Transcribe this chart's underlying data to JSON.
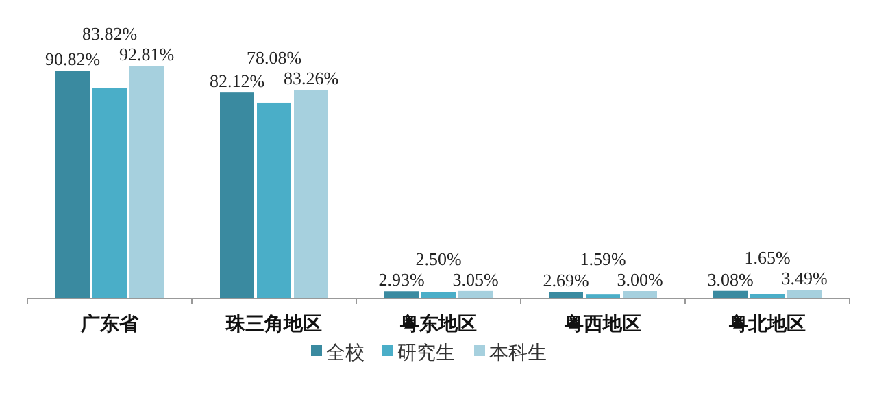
{
  "chart_data": {
    "type": "bar",
    "categories": [
      "广东省",
      "珠三角地区",
      "粤东地区",
      "粤西地区",
      "粤北地区"
    ],
    "series": [
      {
        "name": "全校",
        "color": "#3a8aa0",
        "values": [
          90.82,
          82.12,
          2.93,
          2.69,
          3.08
        ],
        "value_labels": [
          "90.82%",
          "82.12%",
          "2.93%",
          "2.69%",
          "3.08%"
        ]
      },
      {
        "name": "研究生",
        "color": "#4aaec8",
        "values": [
          83.82,
          78.08,
          2.5,
          1.59,
          1.65
        ],
        "value_labels": [
          "83.82%",
          "78.08%",
          "2.50%",
          "1.59%",
          "1.65%"
        ]
      },
      {
        "name": "本科生",
        "color": "#a6d0de",
        "values": [
          92.81,
          83.26,
          3.05,
          3.0,
          3.49
        ],
        "value_labels": [
          "92.81%",
          "83.26%",
          "3.05%",
          "3.00%",
          "3.49%"
        ]
      }
    ],
    "grid": false,
    "legend": "bottom"
  }
}
